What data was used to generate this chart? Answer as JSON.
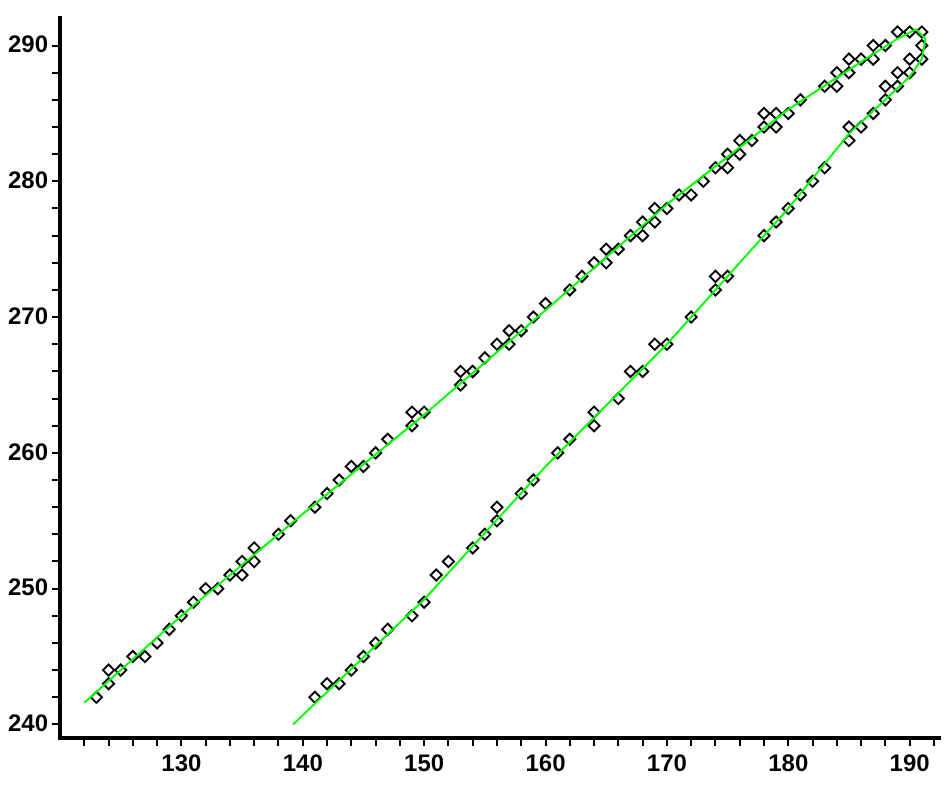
{
  "chart_data": {
    "type": "scatter",
    "marker": "diamond",
    "grid": false,
    "legend": false,
    "xlim": [
      120,
      192.5
    ],
    "ylim": [
      239,
      292
    ],
    "xticks": [
      {
        "value": 122,
        "label": null
      },
      {
        "value": 124,
        "label": null
      },
      {
        "value": 126,
        "label": null
      },
      {
        "value": 128,
        "label": null
      },
      130,
      {
        "value": 132,
        "label": null
      },
      {
        "value": 134,
        "label": null
      },
      {
        "value": 136,
        "label": null
      },
      {
        "value": 138,
        "label": null
      },
      140,
      {
        "value": 142,
        "label": null
      },
      {
        "value": 144,
        "label": null
      },
      {
        "value": 146,
        "label": null
      },
      {
        "value": 148,
        "label": null
      },
      150,
      {
        "value": 152,
        "label": null
      },
      {
        "value": 154,
        "label": null
      },
      {
        "value": 156,
        "label": null
      },
      {
        "value": 158,
        "label": null
      },
      160,
      {
        "value": 162,
        "label": null
      },
      {
        "value": 164,
        "label": null
      },
      {
        "value": 166,
        "label": null
      },
      {
        "value": 168,
        "label": null
      },
      170,
      {
        "value": 172,
        "label": null
      },
      {
        "value": 174,
        "label": null
      },
      {
        "value": 176,
        "label": null
      },
      {
        "value": 178,
        "label": null
      },
      180,
      {
        "value": 182,
        "label": null
      },
      {
        "value": 184,
        "label": null
      },
      {
        "value": 186,
        "label": null
      },
      {
        "value": 188,
        "label": null
      },
      190,
      {
        "value": 192,
        "label": null
      }
    ],
    "yticks": [
      240,
      {
        "value": 242,
        "label": null
      },
      {
        "value": 244,
        "label": null
      },
      {
        "value": 246,
        "label": null
      },
      {
        "value": 248,
        "label": null
      },
      250,
      {
        "value": 252,
        "label": null
      },
      {
        "value": 254,
        "label": null
      },
      {
        "value": 256,
        "label": null
      },
      {
        "value": 258,
        "label": null
      },
      260,
      {
        "value": 262,
        "label": null
      },
      {
        "value": 264,
        "label": null
      },
      {
        "value": 266,
        "label": null
      },
      {
        "value": 268,
        "label": null
      },
      270,
      {
        "value": 272,
        "label": null
      },
      {
        "value": 274,
        "label": null
      },
      {
        "value": 276,
        "label": null
      },
      {
        "value": 278,
        "label": null
      },
      280,
      {
        "value": 282,
        "label": null
      },
      {
        "value": 284,
        "label": null
      },
      {
        "value": 286,
        "label": null
      },
      {
        "value": 288,
        "label": null
      },
      290
    ],
    "series": [
      {
        "type": "line",
        "color": "#00ff00",
        "marker": "none",
        "x": [
          122,
          130,
          140,
          150,
          160,
          170,
          180,
          186,
          189,
          190.5,
          191.3,
          191,
          190,
          185,
          180,
          170,
          160,
          150,
          139.2
        ],
        "values": [
          241.6,
          248,
          255.5,
          262.8,
          270.5,
          278.3,
          285.3,
          288.8,
          290.5,
          291.2,
          290.5,
          289,
          287.7,
          283.5,
          278,
          268,
          259,
          249.2,
          240
        ]
      },
      {
        "color": "#000000",
        "x": [
          123,
          124,
          124,
          125,
          126,
          127,
          128,
          129,
          130,
          131,
          132,
          133,
          134,
          135,
          135,
          136,
          136,
          138,
          139,
          141,
          142,
          143,
          144,
          145,
          146,
          147,
          149,
          149,
          150,
          153,
          153,
          154,
          154,
          155,
          156,
          157,
          157,
          158,
          159,
          160,
          162,
          163,
          164,
          165,
          165,
          166,
          167,
          168,
          168,
          169,
          169,
          170,
          171,
          172,
          173,
          174,
          175,
          175,
          176,
          176,
          177,
          178,
          178,
          179,
          179,
          180,
          181,
          183,
          184,
          184,
          185,
          185,
          186,
          187,
          187,
          188,
          189,
          190,
          191,
          191,
          190,
          191,
          189,
          190,
          188,
          189,
          188,
          187,
          186,
          185,
          185,
          183,
          182,
          181,
          180,
          179,
          178,
          175,
          174,
          174,
          172,
          170,
          169,
          168,
          167,
          166,
          164,
          164,
          162,
          161,
          159,
          158,
          156,
          156,
          155,
          154,
          152,
          151,
          150,
          149,
          147,
          146,
          145,
          144,
          143,
          142,
          141
        ],
        "values": [
          242,
          243,
          244,
          244,
          245,
          245,
          246,
          247,
          248,
          249,
          250,
          250,
          251,
          251,
          252,
          252,
          253,
          254,
          255,
          256,
          257,
          258,
          259,
          259,
          260,
          261,
          262,
          263,
          263,
          265,
          266,
          266,
          266,
          267,
          268,
          269,
          268,
          269,
          270,
          271,
          272,
          273,
          274,
          274,
          275,
          275,
          276,
          276,
          277,
          277,
          278,
          278,
          279,
          279,
          280,
          281,
          281,
          282,
          282,
          283,
          283,
          284,
          285,
          284,
          285,
          285,
          286,
          287,
          287,
          288,
          288,
          289,
          289,
          289,
          290,
          290,
          291,
          291,
          291,
          290,
          289,
          289,
          288,
          288,
          287,
          287,
          286,
          285,
          284,
          284,
          283,
          281,
          280,
          279,
          278,
          277,
          276,
          273,
          273,
          272,
          270,
          268,
          268,
          266,
          266,
          264,
          263,
          262,
          261,
          260,
          258,
          257,
          256,
          255,
          254,
          253,
          252,
          251,
          249,
          248,
          247,
          246,
          245,
          244,
          243,
          243,
          242
        ]
      }
    ]
  }
}
